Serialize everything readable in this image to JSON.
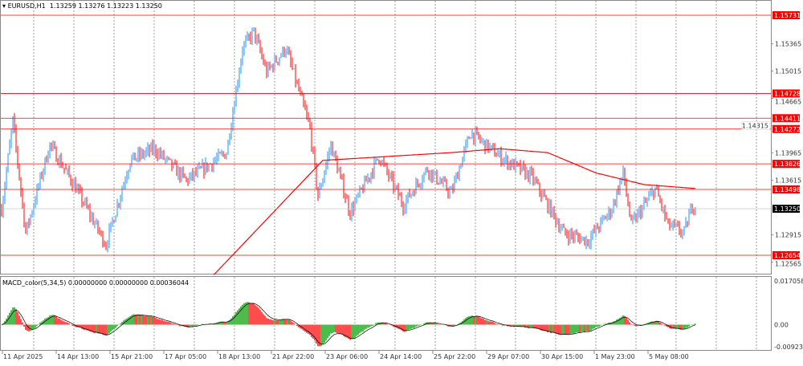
{
  "header": {
    "symbol": "EURUSD,H1",
    "open": "1.13259",
    "high": "1.13276",
    "low": "1.13223",
    "close": "1.13250"
  },
  "indicator": {
    "name": "MACD_color(5,34,5)",
    "v1": "0.00000000",
    "v2": "0.00000000",
    "v3": "0.00036044"
  },
  "colors": {
    "bull": "#1e90ff",
    "bear": "#ff0000",
    "level": "#ff0000",
    "ma": "#ff0000",
    "hist_up": "#00a000",
    "hist_down": "#ff0000"
  },
  "chart_data": {
    "type": "candlestick",
    "timeframe": "H1",
    "ylim": [
      1.124,
      1.161
    ],
    "price_ticks": [
      "1.15365",
      "1.15015",
      "1.14665",
      "1.14315",
      "1.13965",
      "1.13615",
      "1.12915",
      "1.12565"
    ],
    "levels": [
      "1.15731",
      "1.14728",
      "1.14411",
      "1.14272",
      "1.13826",
      "1.13498",
      "1.12654"
    ],
    "current_price": "1.13250",
    "time_labels": [
      "11 Apr 2025",
      "14 Apr 13:00",
      "15 Apr 21:00",
      "17 Apr 05:00",
      "18 Apr 13:00",
      "21 Apr 22:00",
      "23 Apr 06:00",
      "24 Apr 14:00",
      "25 Apr 22:00",
      "29 Apr 07:00",
      "30 Apr 15:00",
      "1 May 23:00",
      "5 May 08:00"
    ],
    "close_path": [
      [
        0,
        1.1325
      ],
      [
        7,
        1.1438
      ],
      [
        15,
        1.1294
      ],
      [
        30,
        1.1407
      ],
      [
        45,
        1.1356
      ],
      [
        65,
        1.1279
      ],
      [
        80,
        1.1387
      ],
      [
        95,
        1.1402
      ],
      [
        115,
        1.1361
      ],
      [
        140,
        1.1397
      ],
      [
        150,
        1.1531
      ],
      [
        157,
        1.1552
      ],
      [
        165,
        1.15
      ],
      [
        177,
        1.1531
      ],
      [
        192,
        1.1428
      ],
      [
        197,
        1.134
      ],
      [
        205,
        1.1407
      ],
      [
        217,
        1.132
      ],
      [
        235,
        1.1392
      ],
      [
        250,
        1.133
      ],
      [
        265,
        1.1376
      ],
      [
        280,
        1.1345
      ],
      [
        292,
        1.1423
      ],
      [
        310,
        1.1392
      ],
      [
        330,
        1.1366
      ],
      [
        350,
        1.1294
      ],
      [
        365,
        1.1284
      ],
      [
        380,
        1.1325
      ],
      [
        387,
        1.1371
      ],
      [
        392,
        1.1304
      ],
      [
        407,
        1.1351
      ],
      [
        415,
        1.1304
      ],
      [
        425,
        1.1294
      ],
      [
        430,
        1.133
      ],
      [
        432,
        1.1325
      ]
    ],
    "ma_path": [
      [
        132,
        1.124
      ],
      [
        200,
        1.1387
      ],
      [
        240,
        1.1392
      ],
      [
        280,
        1.1397
      ],
      [
        310,
        1.1402
      ],
      [
        340,
        1.1397
      ],
      [
        370,
        1.1371
      ],
      [
        400,
        1.1356
      ],
      [
        432,
        1.1351
      ]
    ],
    "macd_ticks": [
      "0.0170583",
      "0.00",
      "-0.0092306"
    ],
    "macd_range": [
      -0.0092306,
      0.0170583
    ]
  }
}
